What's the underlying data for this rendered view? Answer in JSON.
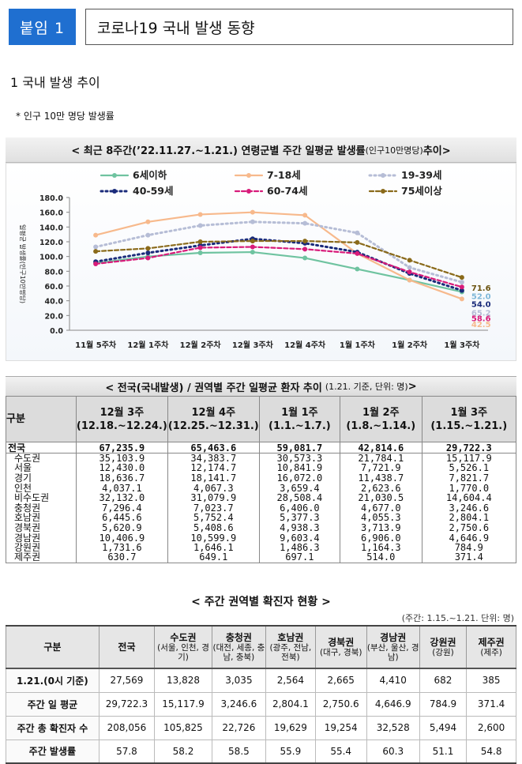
{
  "header": {
    "badge": "붙임 1",
    "title": "코로나19 국내 발생 동향"
  },
  "section1": {
    "heading": "1  국내 발생 추이",
    "note": "* 인구 10만 명당 발생률"
  },
  "chart_title": {
    "main": "< 최근 8주간(’22.11.27.~1.21.) 연령군별 주간 일평균 발생률",
    "small": "(인구10만명당)",
    "end": " 추이>"
  },
  "chart_data": {
    "type": "line",
    "title": "최근 8주간(’22.11.27.~1.21.) 연령군별 주간 일평균 발생률(인구10만명당) 추이",
    "ylabel": "일평균 발생률(인구10만명당)",
    "xlabel": "",
    "ylim": [
      0,
      180
    ],
    "yticks": [
      "0.0",
      "20.0",
      "40.0",
      "60.0",
      "80.0",
      "100.0",
      "120.0",
      "140.0",
      "160.0",
      "180.0"
    ],
    "categories": [
      "11월 5주차",
      "12월 1주차",
      "12월 2주차",
      "12월 3주차",
      "12월 4주차",
      "1월 1주차",
      "1월 2주차",
      "1월 3주차"
    ],
    "series": [
      {
        "name": "6세이하",
        "color": "#6fc3a0",
        "style": "solid",
        "values": [
          91,
          100,
          105,
          106,
          98,
          83,
          68,
          52.0
        ],
        "end_label": "52.0",
        "label_color": "#7fb8d8"
      },
      {
        "name": "7-18세",
        "color": "#f7b98c",
        "style": "solid",
        "values": [
          129,
          147,
          157,
          160,
          156,
          104,
          68,
          42.5
        ],
        "end_label": "42.5",
        "label_color": "#f7b98c"
      },
      {
        "name": "19-39세",
        "color": "#b6bdd6",
        "style": "dotted",
        "values": [
          113,
          129,
          142,
          147,
          145,
          132,
          85,
          65.2
        ],
        "end_label": "65.2",
        "label_color": "#b6bdd6"
      },
      {
        "name": "40-59세",
        "color": "#1a2b7a",
        "style": "dotted",
        "values": [
          93,
          105,
          115,
          124,
          118,
          106,
          77,
          54.0
        ],
        "end_label": "54.0",
        "label_color": "#1a2b7a"
      },
      {
        "name": "60-74세",
        "color": "#d81b7a",
        "style": "dashed",
        "values": [
          90,
          98,
          112,
          113,
          110,
          104,
          79,
          58.6
        ],
        "end_label": "58.6",
        "label_color": "#d81b7a"
      },
      {
        "name": "75세이상",
        "color": "#8a6a1a",
        "style": "dashed",
        "values": [
          107,
          111,
          120,
          121,
          121,
          119,
          95,
          71.6
        ],
        "end_label": "71.6",
        "label_color": "#6b5310"
      }
    ]
  },
  "table1": {
    "title": "< 전국(국내발생) / 권역별 주간 일평균 환자 추이",
    "title_small": "(1.21. 기준, 단위: 명)",
    "title_end": " >",
    "headers": [
      "구분",
      "12월 3주\n(12.18.~12.24.)",
      "12월 4주\n(12.25.~12.31.)",
      "1월 1주\n(1.1.~1.7.)",
      "1월 2주\n(1.8.~1.14.)",
      "1월 3주\n(1.15.~1.21.)"
    ],
    "rows": [
      {
        "label": "전국",
        "values": [
          "67,235.9",
          "65,463.6",
          "59,081.7",
          "42,814.6",
          "29,722.3"
        ],
        "indent": 0
      },
      {
        "label": "수도권",
        "values": [
          "35,103.9",
          "34,383.7",
          "30,573.3",
          "21,784.1",
          "15,117.9"
        ],
        "indent": 1
      },
      {
        "label": "서울",
        "values": [
          "12,430.0",
          "12,174.7",
          "10,841.9",
          "7,721.9",
          "5,526.1"
        ],
        "indent": 1
      },
      {
        "label": "경기",
        "values": [
          "18,636.7",
          "18,141.7",
          "16,072.0",
          "11,438.7",
          "7,821.7"
        ],
        "indent": 1
      },
      {
        "label": "인천",
        "values": [
          "4,037.1",
          "4,067.3",
          "3,659.4",
          "2,623.6",
          "1,770.0"
        ],
        "indent": 1
      },
      {
        "label": "비수도권",
        "values": [
          "32,132.0",
          "31,079.9",
          "28,508.4",
          "21,030.5",
          "14,604.4"
        ],
        "indent": 1
      },
      {
        "label": "충청권",
        "values": [
          "7,296.4",
          "7,023.7",
          "6,406.0",
          "4,677.0",
          "3,246.6"
        ],
        "indent": 1
      },
      {
        "label": "호남권",
        "values": [
          "6,445.6",
          "5,752.4",
          "5,377.3",
          "4,055.3",
          "2,804.1"
        ],
        "indent": 1
      },
      {
        "label": "경북권",
        "values": [
          "5,620.9",
          "5,408.6",
          "4,938.3",
          "3,713.9",
          "2,750.6"
        ],
        "indent": 1
      },
      {
        "label": "경남권",
        "values": [
          "10,406.9",
          "10,599.9",
          "9,603.4",
          "6,906.0",
          "4,646.9"
        ],
        "indent": 1
      },
      {
        "label": "강원권",
        "values": [
          "1,731.6",
          "1,646.1",
          "1,486.3",
          "1,164.3",
          "784.9"
        ],
        "indent": 1
      },
      {
        "label": "제주권",
        "values": [
          "630.7",
          "649.1",
          "697.1",
          "514.0",
          "371.4"
        ],
        "indent": 1
      }
    ]
  },
  "table2": {
    "title": "< 주간 권역별 확진자 현황 >",
    "unit": "(주간: 1.15.~1.21. 단위: 명)",
    "headers": [
      {
        "main": "구분",
        "sub": ""
      },
      {
        "main": "전국",
        "sub": ""
      },
      {
        "main": "수도권",
        "sub": "(서울, 인천, 경기)"
      },
      {
        "main": "충청권",
        "sub": "(대전, 세종, 충남, 충북)"
      },
      {
        "main": "호남권",
        "sub": "(광주, 전남, 전북)"
      },
      {
        "main": "경북권",
        "sub": "(대구, 경북)"
      },
      {
        "main": "경남권",
        "sub": "(부산, 울산, 경남)"
      },
      {
        "main": "강원권",
        "sub": "(강원)"
      },
      {
        "main": "제주권",
        "sub": "(제주)"
      }
    ],
    "rows": [
      {
        "label": "1.21.(0시 기준)",
        "values": [
          "27,569",
          "13,828",
          "3,035",
          "2,564",
          "2,665",
          "4,410",
          "682",
          "385"
        ]
      },
      {
        "label": "주간 일 평균",
        "values": [
          "29,722.3",
          "15,117.9",
          "3,246.6",
          "2,804.1",
          "2,750.6",
          "4,646.9",
          "784.9",
          "371.4"
        ]
      },
      {
        "label": "주간 총 확진자 수",
        "values": [
          "208,056",
          "105,825",
          "22,726",
          "19,629",
          "19,254",
          "32,528",
          "5,494",
          "2,600"
        ]
      },
      {
        "label": "주간 발생률",
        "values": [
          "57.8",
          "58.2",
          "58.5",
          "55.9",
          "55.4",
          "60.3",
          "51.1",
          "54.8"
        ]
      }
    ]
  }
}
